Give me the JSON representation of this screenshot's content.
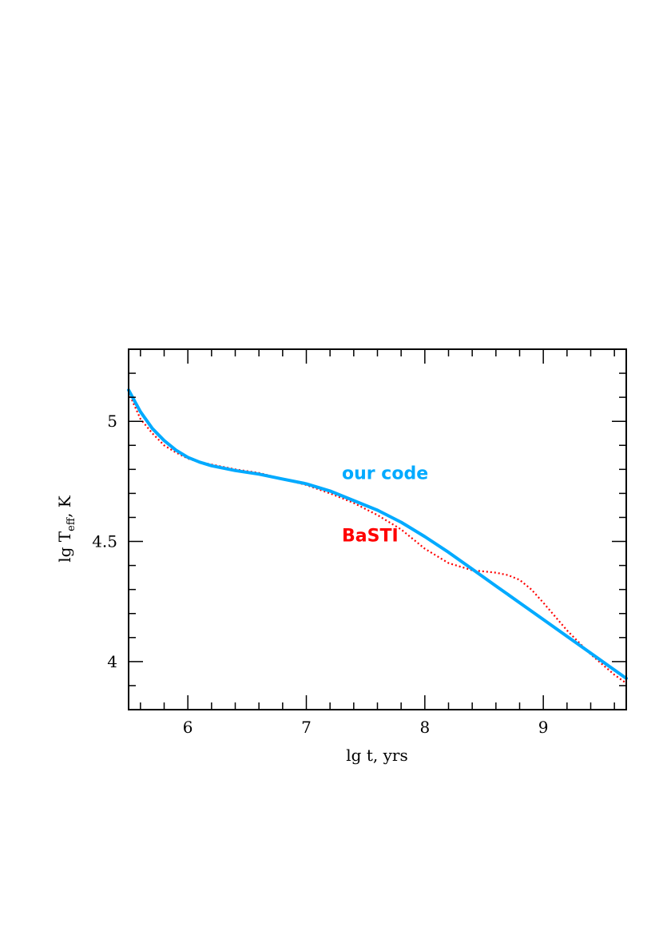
{
  "chart_data": {
    "type": "line",
    "xlabel": "lg t, yrs",
    "ylabel_main": "lg T",
    "ylabel_sub": "eff",
    "ylabel_tail": ", K",
    "xlim": [
      5.5,
      9.7
    ],
    "ylim": [
      3.8,
      5.3
    ],
    "x_ticks": [
      6,
      7,
      8,
      9
    ],
    "x_tick_labels": [
      "6",
      "7",
      "8",
      "9"
    ],
    "y_ticks": [
      4,
      4.5,
      5
    ],
    "y_tick_labels": [
      "4",
      "4.5",
      "5"
    ],
    "x_minor_step": 0.2,
    "y_minor_step": 0.1,
    "series": [
      {
        "name": "our code",
        "color": "#00aaff",
        "style": "solid",
        "x": [
          5.5,
          5.6,
          5.7,
          5.8,
          5.9,
          6.0,
          6.1,
          6.2,
          6.4,
          6.6,
          6.8,
          7.0,
          7.2,
          7.4,
          7.6,
          7.8,
          8.0,
          8.2,
          8.4,
          8.6,
          8.8,
          9.0,
          9.2,
          9.4,
          9.6,
          9.7
        ],
        "y": [
          5.13,
          5.04,
          4.97,
          4.92,
          4.88,
          4.85,
          4.83,
          4.815,
          4.795,
          4.78,
          4.76,
          4.74,
          4.71,
          4.67,
          4.63,
          4.58,
          4.52,
          4.455,
          4.385,
          4.315,
          4.245,
          4.175,
          4.105,
          4.035,
          3.965,
          3.93
        ]
      },
      {
        "name": "BaSTI",
        "color": "#ff0000",
        "style": "dotted",
        "x": [
          5.5,
          5.6,
          5.7,
          5.8,
          5.9,
          6.0,
          6.1,
          6.2,
          6.4,
          6.6,
          6.8,
          7.0,
          7.2,
          7.4,
          7.6,
          7.8,
          8.0,
          8.2,
          8.4,
          8.5,
          8.6,
          8.7,
          8.8,
          8.9,
          9.0,
          9.2,
          9.4,
          9.6,
          9.7
        ],
        "y": [
          5.12,
          5.01,
          4.95,
          4.9,
          4.87,
          4.845,
          4.83,
          4.82,
          4.8,
          4.785,
          4.76,
          4.735,
          4.7,
          4.66,
          4.61,
          4.55,
          4.47,
          4.41,
          4.38,
          4.375,
          4.37,
          4.36,
          4.34,
          4.3,
          4.245,
          4.13,
          4.03,
          3.945,
          3.91
        ]
      }
    ],
    "annotations": [
      {
        "text": "our code",
        "color": "#00aaff",
        "x": 7.3,
        "y": 4.76
      },
      {
        "text": "BaSTI",
        "color": "#ff0000",
        "x": 7.3,
        "y": 4.5
      }
    ]
  }
}
